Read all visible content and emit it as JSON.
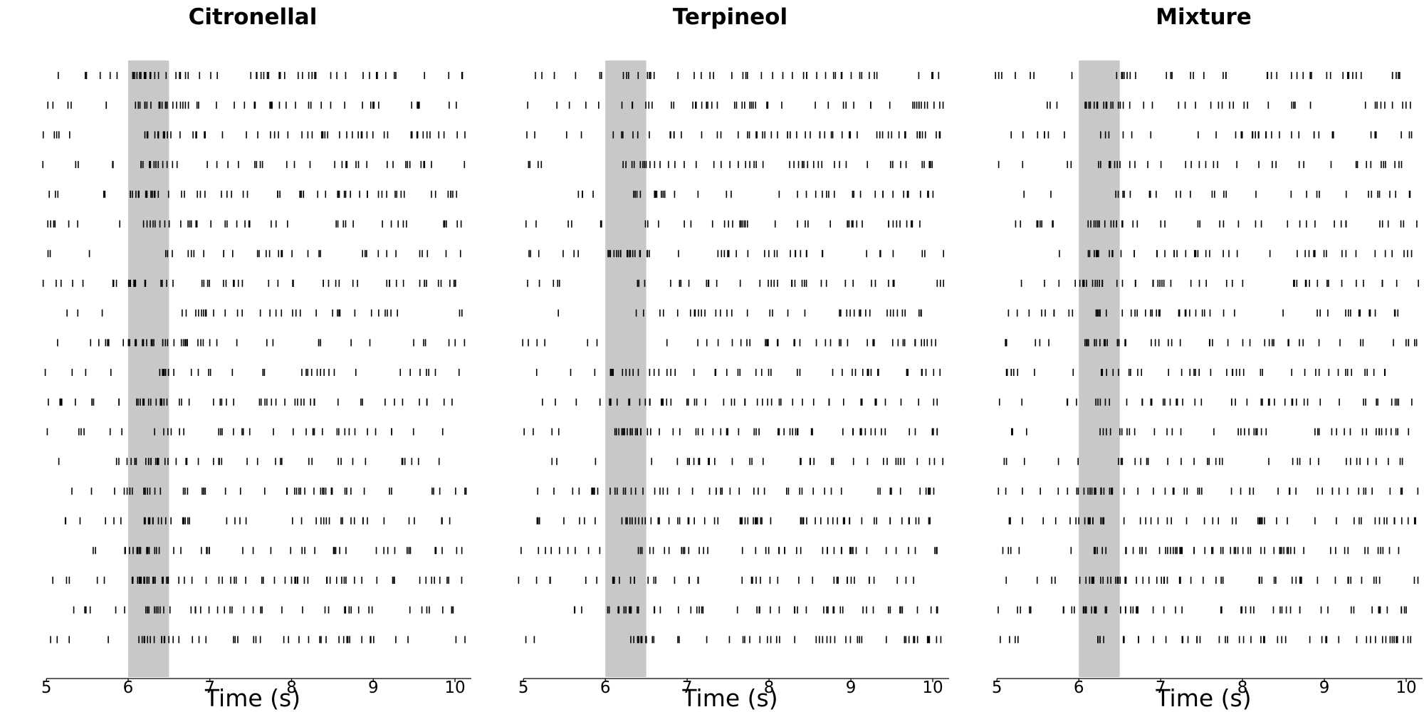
{
  "chart_data": [
    {
      "type": "raster",
      "title": "Citronellal",
      "xlabel": "Time (s)",
      "xlim": [
        4.85,
        10.2
      ],
      "xticks": [
        5,
        6,
        7,
        8,
        9,
        10
      ],
      "xtick_labels": [
        "5",
        "6",
        "7",
        "8",
        "9",
        "10"
      ],
      "stimulus": {
        "start": 6.0,
        "end": 6.5,
        "color": "#c8c8c8"
      },
      "n_trials": 20,
      "seed": 11,
      "rates": {
        "pre": 5.5,
        "stim": 24.0,
        "post": 9.5
      },
      "grid": false,
      "legend": "none"
    },
    {
      "type": "raster",
      "title": "Terpineol",
      "xlabel": "Time (s)",
      "xlim": [
        4.85,
        10.2
      ],
      "xticks": [
        5,
        6,
        7,
        8,
        9,
        10
      ],
      "xtick_labels": [
        "5",
        "6",
        "7",
        "8",
        "9",
        "10"
      ],
      "stimulus": {
        "start": 6.0,
        "end": 6.5,
        "color": "#c8c8c8"
      },
      "n_trials": 20,
      "seed": 23,
      "rates": {
        "pre": 5.5,
        "stim": 24.0,
        "post": 10.0
      },
      "grid": false,
      "legend": "none"
    },
    {
      "type": "raster",
      "title": "Mixture",
      "xlabel": "Time (s)",
      "xlim": [
        4.85,
        10.2
      ],
      "xticks": [
        5,
        6,
        7,
        8,
        9,
        10
      ],
      "xtick_labels": [
        "5",
        "6",
        "7",
        "8",
        "9",
        "10"
      ],
      "stimulus": {
        "start": 6.0,
        "end": 6.5,
        "color": "#c8c8c8"
      },
      "n_trials": 20,
      "seed": 37,
      "rates": {
        "pre": 5.0,
        "stim": 22.0,
        "post": 9.0
      },
      "grid": false,
      "legend": "none"
    }
  ]
}
